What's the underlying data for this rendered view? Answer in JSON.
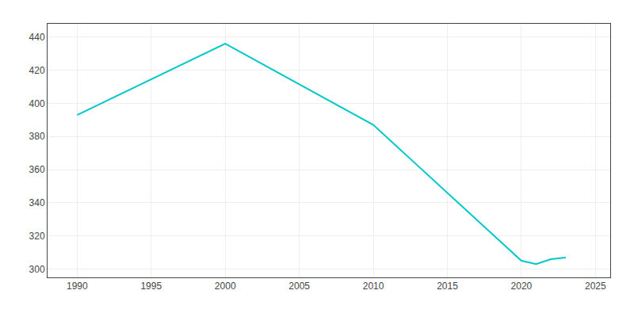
{
  "chart_data": {
    "type": "line",
    "x": [
      1990,
      2000,
      2010,
      2020,
      2021,
      2022,
      2023
    ],
    "values": [
      393,
      436,
      387,
      305,
      303,
      306,
      307
    ],
    "color": "#00c8c8",
    "xlim": [
      1988,
      2026
    ],
    "ylim": [
      295,
      448
    ],
    "xticks": [
      1990,
      1995,
      2000,
      2005,
      2010,
      2015,
      2020,
      2025
    ],
    "yticks": [
      300,
      320,
      340,
      360,
      380,
      400,
      420,
      440
    ],
    "grid": true
  }
}
